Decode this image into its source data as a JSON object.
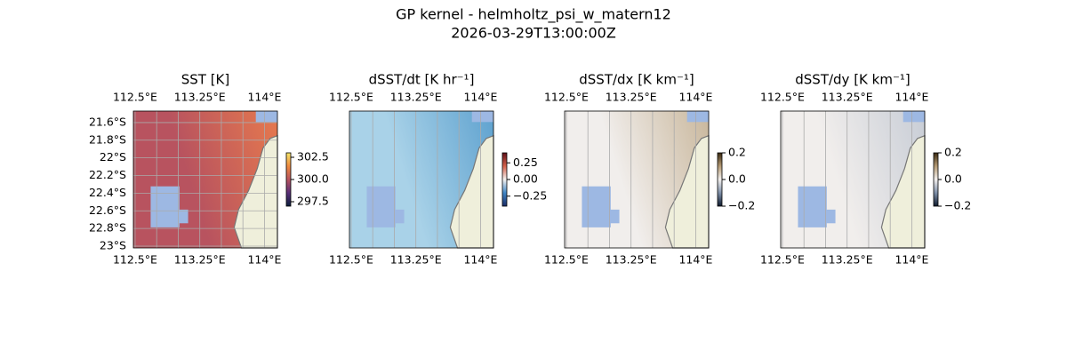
{
  "figure": {
    "title": "GP kernel - helmholtz_psi_w_matern12",
    "subtitle": "2026-03-29T13:00:00Z"
  },
  "chart_data": [
    {
      "type": "map",
      "title": "SST [K]",
      "field_color": "#b8535f",
      "field_color2": "#e6794e",
      "xlim": [
        112.48,
        114.15
      ],
      "ylim": [
        -23.02,
        -21.47
      ],
      "xticks": [
        {
          "value": 112.5,
          "label": "112.5°E"
        },
        {
          "value": 113.25,
          "label": "113.25°E"
        },
        {
          "value": 114,
          "label": "114°E"
        }
      ],
      "yticks": [
        {
          "value": -21.6,
          "label": "21.6°S"
        },
        {
          "value": -21.8,
          "label": "21.8°S"
        },
        {
          "value": -22,
          "label": "22°S"
        },
        {
          "value": -22.2,
          "label": "22.2°S"
        },
        {
          "value": -22.4,
          "label": "22.4°S"
        },
        {
          "value": -22.6,
          "label": "22.6°S"
        },
        {
          "value": -22.8,
          "label": "22.8°S"
        },
        {
          "value": -23,
          "label": "23°S"
        }
      ],
      "xgrid": [
        112.5,
        112.75,
        113,
        113.25,
        113.5,
        113.75,
        114
      ],
      "clim": [
        297,
        303
      ],
      "cticks": [
        {
          "value": 297.5,
          "label": "297.5"
        },
        {
          "value": 300,
          "label": "300.0"
        },
        {
          "value": 302.5,
          "label": "302.5"
        }
      ],
      "cmap_colors": [
        "#0b1e3c",
        "#5a2f7a",
        "#b8535f",
        "#f08a3f",
        "#f6e86b"
      ]
    },
    {
      "type": "map",
      "title": "dSST/dt [K hr⁻¹]",
      "field_color": "#a9d2e8",
      "field_color2": "#5fa2cf",
      "xlim": [
        112.48,
        114.15
      ],
      "ylim": [
        -23.02,
        -21.47
      ],
      "xticks": [
        {
          "value": 112.5,
          "label": "112.5°E"
        },
        {
          "value": 113.25,
          "label": "113.25°E"
        },
        {
          "value": 114,
          "label": "114°E"
        }
      ],
      "xgrid": [
        112.5,
        112.75,
        113,
        113.25,
        113.5,
        113.75,
        114
      ],
      "clim": [
        -0.4,
        0.4
      ],
      "cticks": [
        {
          "value": -0.25,
          "label": "−0.25"
        },
        {
          "value": 0,
          "label": "0.00"
        },
        {
          "value": 0.25,
          "label": "0.25"
        }
      ],
      "cmap_colors": [
        "#1a2b66",
        "#3f86c6",
        "#f5f2f0",
        "#d5604a",
        "#5e0f18"
      ]
    },
    {
      "type": "map",
      "title": "dSST/dx [K km⁻¹]",
      "field_color": "#f1eeec",
      "field_color2": "#c9b79c",
      "xlim": [
        112.48,
        114.15
      ],
      "ylim": [
        -23.02,
        -21.47
      ],
      "xticks": [
        {
          "value": 112.5,
          "label": "112.5°E"
        },
        {
          "value": 113.25,
          "label": "113.25°E"
        },
        {
          "value": 114,
          "label": "114°E"
        }
      ],
      "xgrid": [
        112.5,
        112.75,
        113,
        113.25,
        113.5,
        113.75,
        114
      ],
      "clim": [
        -0.2,
        0.2
      ],
      "cticks": [
        {
          "value": -0.2,
          "label": "−0.2"
        },
        {
          "value": 0,
          "label": "0.0"
        },
        {
          "value": 0.2,
          "label": "0.2"
        }
      ],
      "cmap_colors": [
        "#0e1a2e",
        "#7e8fa8",
        "#f3f0ee",
        "#b49a74",
        "#3a2a12"
      ]
    },
    {
      "type": "map",
      "title": "dSST/dy [K km⁻¹]",
      "field_color": "#f1eeec",
      "field_color2": "#c8cdd6",
      "xlim": [
        112.48,
        114.15
      ],
      "ylim": [
        -23.02,
        -21.47
      ],
      "xticks": [
        {
          "value": 112.5,
          "label": "112.5°E"
        },
        {
          "value": 113.25,
          "label": "113.25°E"
        },
        {
          "value": 114,
          "label": "114°E"
        }
      ],
      "xgrid": [
        112.5,
        112.75,
        113,
        113.25,
        113.5,
        113.75,
        114
      ],
      "clim": [
        -0.2,
        0.2
      ],
      "cticks": [
        {
          "value": -0.2,
          "label": "−0.2"
        },
        {
          "value": 0,
          "label": "0.0"
        },
        {
          "value": 0.2,
          "label": "0.2"
        }
      ],
      "cmap_colors": [
        "#0e1a2e",
        "#7e8fa8",
        "#f3f0ee",
        "#b49a74",
        "#3a2a12"
      ]
    }
  ]
}
